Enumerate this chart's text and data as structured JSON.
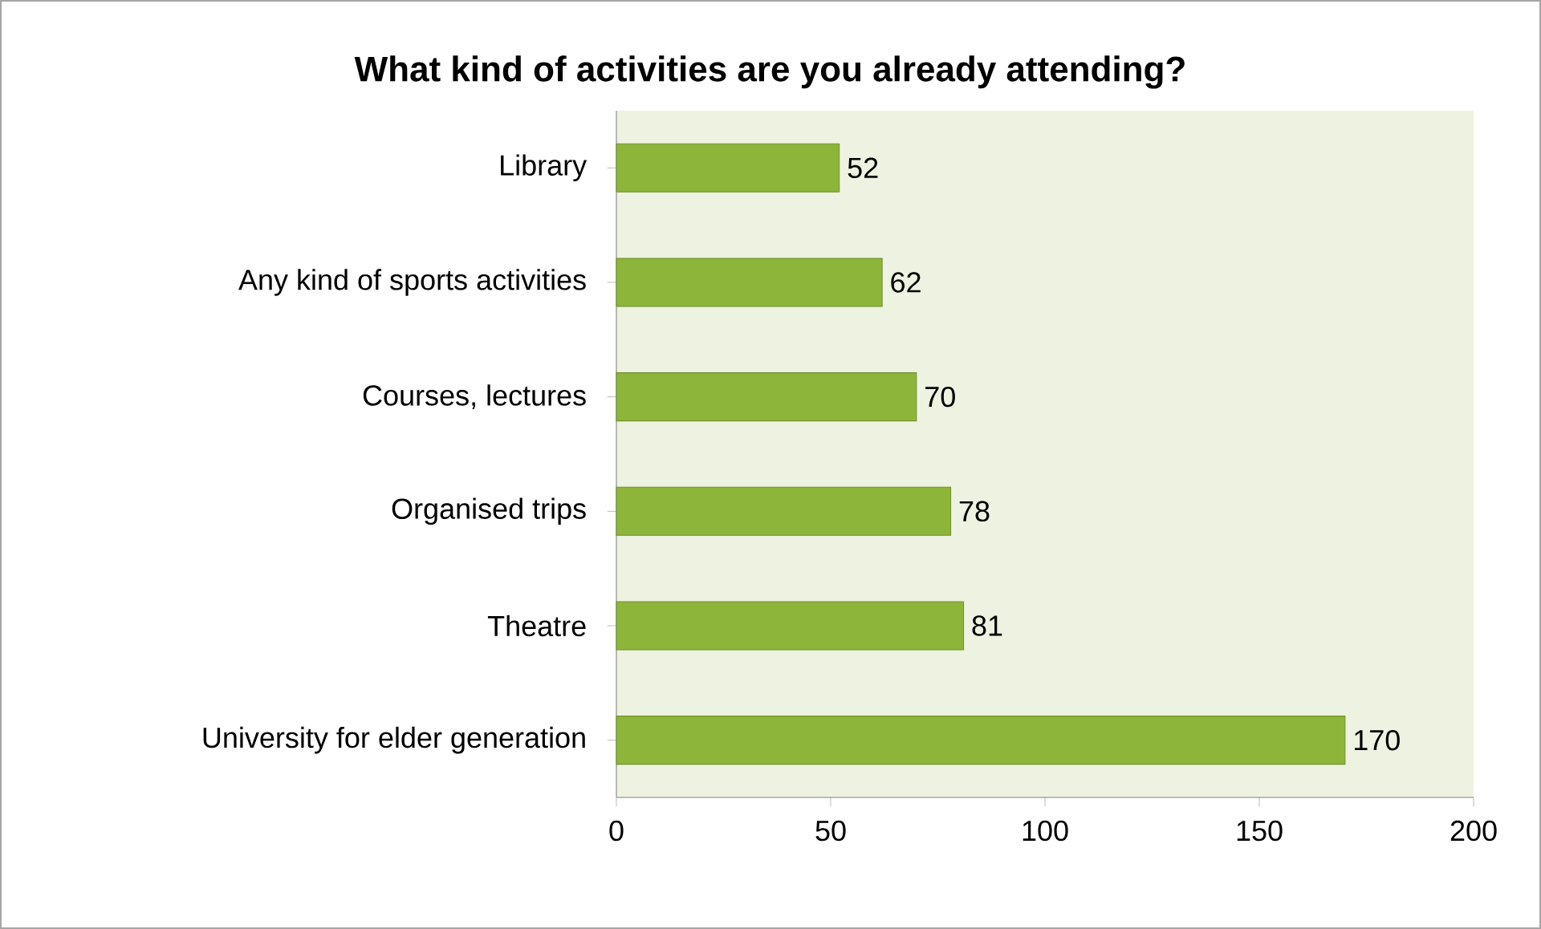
{
  "chart_data": {
    "type": "bar",
    "orientation": "horizontal",
    "title": "What kind of activities are you already attending?",
    "categories": [
      "Library",
      "Any kind of sports activities",
      "Courses, lectures",
      "Organised trips",
      "Theatre",
      "University for elder generation"
    ],
    "values": [
      52,
      62,
      70,
      78,
      81,
      170
    ],
    "color": "#8db53a",
    "xlim": [
      0,
      200
    ],
    "xticks": [
      0,
      50,
      100,
      150,
      200
    ],
    "data_labels": true
  }
}
